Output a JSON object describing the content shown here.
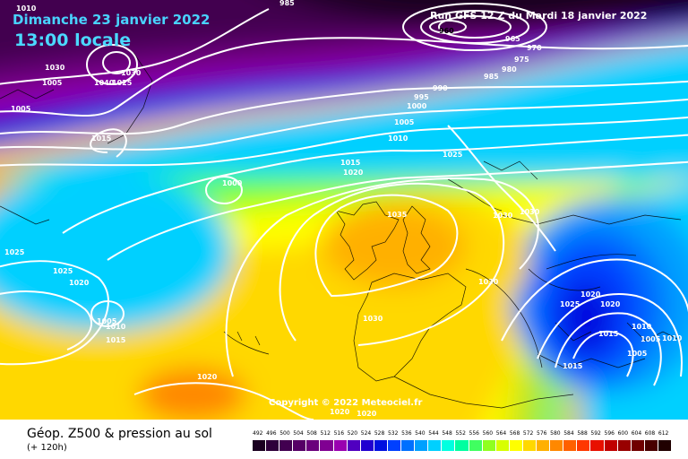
{
  "header": {
    "date": "Dimanche 23 janvier 2022",
    "time": "13:00 locale",
    "run": "Run GFS 12 Z du Mardi 18 janvier 2022"
  },
  "copyright": "Copyright © 2022 Meteociel.fr",
  "footer": {
    "title": "Géop. Z500 & pression au sol",
    "subtitle": "(+ 120h)"
  },
  "legend": {
    "values": [
      "492",
      "496",
      "500",
      "504",
      "508",
      "512",
      "516",
      "520",
      "524",
      "528",
      "532",
      "536",
      "540",
      "544",
      "548",
      "552",
      "556",
      "560",
      "564",
      "568",
      "572",
      "576",
      "580",
      "584",
      "588",
      "592",
      "596",
      "600",
      "604",
      "608",
      "612"
    ],
    "colors": [
      "#1a0020",
      "#2e003a",
      "#420050",
      "#560066",
      "#6a007c",
      "#800092",
      "#9a00b0",
      "#5000c0",
      "#2000d0",
      "#0010e0",
      "#0040ff",
      "#0070ff",
      "#00a0ff",
      "#00d0ff",
      "#00ffe0",
      "#00ffa0",
      "#40ff60",
      "#90ff20",
      "#d8ff00",
      "#ffff00",
      "#ffd800",
      "#ffb000",
      "#ff8800",
      "#ff6000",
      "#ff3800",
      "#e81000",
      "#c00000",
      "#980000",
      "#700000",
      "#480000",
      "#200000"
    ]
  },
  "isobars": [
    {
      "label": "1010",
      "role": "isobar"
    },
    {
      "label": "985",
      "role": "isobar"
    },
    {
      "label": "960",
      "role": "isobar"
    },
    {
      "label": "965",
      "role": "isobar"
    },
    {
      "label": "970",
      "role": "isobar"
    },
    {
      "label": "975",
      "role": "isobar"
    },
    {
      "label": "980",
      "role": "isobar"
    },
    {
      "label": "985",
      "role": "isobar"
    },
    {
      "label": "990",
      "role": "isobar"
    },
    {
      "label": "995",
      "role": "isobar"
    },
    {
      "label": "1000",
      "role": "isobar"
    },
    {
      "label": "1005",
      "role": "isobar"
    },
    {
      "label": "1010",
      "role": "isobar"
    },
    {
      "label": "1015",
      "role": "isobar"
    },
    {
      "label": "1020",
      "role": "isobar"
    },
    {
      "label": "1025",
      "role": "isobar"
    },
    {
      "label": "1030",
      "role": "isobar"
    },
    {
      "label": "1035",
      "role": "isobar"
    },
    {
      "label": "1030",
      "role": "isobar"
    },
    {
      "label": "1030",
      "role": "isobar"
    },
    {
      "label": "1020",
      "role": "isobar"
    },
    {
      "label": "1025",
      "role": "isobar"
    },
    {
      "label": "1020",
      "role": "isobar"
    },
    {
      "label": "1010",
      "role": "isobar"
    },
    {
      "label": "1005",
      "role": "isobar"
    },
    {
      "label": "1015",
      "role": "isobar"
    },
    {
      "label": "1015",
      "role": "isobar"
    },
    {
      "label": "1000",
      "role": "isobar"
    },
    {
      "label": "1005",
      "role": "isobar"
    },
    {
      "label": "1005",
      "role": "isobar"
    },
    {
      "label": "1025",
      "role": "isobar"
    },
    {
      "label": "1025",
      "role": "isobar"
    },
    {
      "label": "1020",
      "role": "isobar"
    },
    {
      "label": "1005",
      "role": "isobar"
    },
    {
      "label": "1010",
      "role": "isobar"
    },
    {
      "label": "1015",
      "role": "isobar"
    },
    {
      "label": "1030",
      "role": "isobar"
    },
    {
      "label": "1030",
      "role": "isobar"
    },
    {
      "label": "1020",
      "role": "isobar"
    },
    {
      "label": "1020",
      "role": "isobar"
    },
    {
      "label": "1020",
      "role": "isobar"
    },
    {
      "label": "1030",
      "role": "isobar"
    },
    {
      "label": "1025",
      "role": "isobar"
    },
    {
      "label": "1005",
      "role": "isobar"
    },
    {
      "label": "1010",
      "role": "isobar"
    },
    {
      "label": "1015",
      "role": "isobar"
    },
    {
      "label": "1010",
      "role": "isobar"
    },
    {
      "label": "1015",
      "role": "isobar"
    },
    {
      "label": "1030",
      "role": "isobar"
    },
    {
      "label": "1040",
      "role": "isobar"
    },
    {
      "label": "1025",
      "role": "isobar"
    }
  ]
}
